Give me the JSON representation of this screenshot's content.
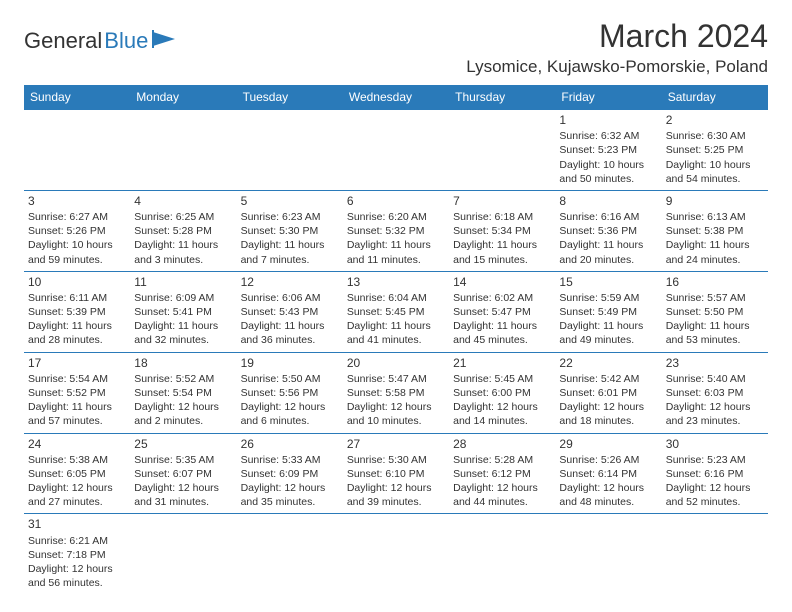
{
  "logo": {
    "part1": "General",
    "part2": "Blue"
  },
  "title": "March 2024",
  "location": "Lysomice, Kujawsko-Pomorskie, Poland",
  "dayHeaders": [
    "Sunday",
    "Monday",
    "Tuesday",
    "Wednesday",
    "Thursday",
    "Friday",
    "Saturday"
  ],
  "colors": {
    "headerBg": "#2a7ab9",
    "headerText": "#ffffff",
    "border": "#2a7ab9",
    "text": "#333333"
  },
  "startWeekday": 5,
  "days": [
    {
      "n": 1,
      "sr": "6:32 AM",
      "ss": "5:23 PM",
      "dl": "10 hours and 50 minutes."
    },
    {
      "n": 2,
      "sr": "6:30 AM",
      "ss": "5:25 PM",
      "dl": "10 hours and 54 minutes."
    },
    {
      "n": 3,
      "sr": "6:27 AM",
      "ss": "5:26 PM",
      "dl": "10 hours and 59 minutes."
    },
    {
      "n": 4,
      "sr": "6:25 AM",
      "ss": "5:28 PM",
      "dl": "11 hours and 3 minutes."
    },
    {
      "n": 5,
      "sr": "6:23 AM",
      "ss": "5:30 PM",
      "dl": "11 hours and 7 minutes."
    },
    {
      "n": 6,
      "sr": "6:20 AM",
      "ss": "5:32 PM",
      "dl": "11 hours and 11 minutes."
    },
    {
      "n": 7,
      "sr": "6:18 AM",
      "ss": "5:34 PM",
      "dl": "11 hours and 15 minutes."
    },
    {
      "n": 8,
      "sr": "6:16 AM",
      "ss": "5:36 PM",
      "dl": "11 hours and 20 minutes."
    },
    {
      "n": 9,
      "sr": "6:13 AM",
      "ss": "5:38 PM",
      "dl": "11 hours and 24 minutes."
    },
    {
      "n": 10,
      "sr": "6:11 AM",
      "ss": "5:39 PM",
      "dl": "11 hours and 28 minutes."
    },
    {
      "n": 11,
      "sr": "6:09 AM",
      "ss": "5:41 PM",
      "dl": "11 hours and 32 minutes."
    },
    {
      "n": 12,
      "sr": "6:06 AM",
      "ss": "5:43 PM",
      "dl": "11 hours and 36 minutes."
    },
    {
      "n": 13,
      "sr": "6:04 AM",
      "ss": "5:45 PM",
      "dl": "11 hours and 41 minutes."
    },
    {
      "n": 14,
      "sr": "6:02 AM",
      "ss": "5:47 PM",
      "dl": "11 hours and 45 minutes."
    },
    {
      "n": 15,
      "sr": "5:59 AM",
      "ss": "5:49 PM",
      "dl": "11 hours and 49 minutes."
    },
    {
      "n": 16,
      "sr": "5:57 AM",
      "ss": "5:50 PM",
      "dl": "11 hours and 53 minutes."
    },
    {
      "n": 17,
      "sr": "5:54 AM",
      "ss": "5:52 PM",
      "dl": "11 hours and 57 minutes."
    },
    {
      "n": 18,
      "sr": "5:52 AM",
      "ss": "5:54 PM",
      "dl": "12 hours and 2 minutes."
    },
    {
      "n": 19,
      "sr": "5:50 AM",
      "ss": "5:56 PM",
      "dl": "12 hours and 6 minutes."
    },
    {
      "n": 20,
      "sr": "5:47 AM",
      "ss": "5:58 PM",
      "dl": "12 hours and 10 minutes."
    },
    {
      "n": 21,
      "sr": "5:45 AM",
      "ss": "6:00 PM",
      "dl": "12 hours and 14 minutes."
    },
    {
      "n": 22,
      "sr": "5:42 AM",
      "ss": "6:01 PM",
      "dl": "12 hours and 18 minutes."
    },
    {
      "n": 23,
      "sr": "5:40 AM",
      "ss": "6:03 PM",
      "dl": "12 hours and 23 minutes."
    },
    {
      "n": 24,
      "sr": "5:38 AM",
      "ss": "6:05 PM",
      "dl": "12 hours and 27 minutes."
    },
    {
      "n": 25,
      "sr": "5:35 AM",
      "ss": "6:07 PM",
      "dl": "12 hours and 31 minutes."
    },
    {
      "n": 26,
      "sr": "5:33 AM",
      "ss": "6:09 PM",
      "dl": "12 hours and 35 minutes."
    },
    {
      "n": 27,
      "sr": "5:30 AM",
      "ss": "6:10 PM",
      "dl": "12 hours and 39 minutes."
    },
    {
      "n": 28,
      "sr": "5:28 AM",
      "ss": "6:12 PM",
      "dl": "12 hours and 44 minutes."
    },
    {
      "n": 29,
      "sr": "5:26 AM",
      "ss": "6:14 PM",
      "dl": "12 hours and 48 minutes."
    },
    {
      "n": 30,
      "sr": "5:23 AM",
      "ss": "6:16 PM",
      "dl": "12 hours and 52 minutes."
    },
    {
      "n": 31,
      "sr": "6:21 AM",
      "ss": "7:18 PM",
      "dl": "12 hours and 56 minutes."
    }
  ],
  "labels": {
    "sunrise": "Sunrise:",
    "sunset": "Sunset:",
    "daylight": "Daylight:"
  }
}
